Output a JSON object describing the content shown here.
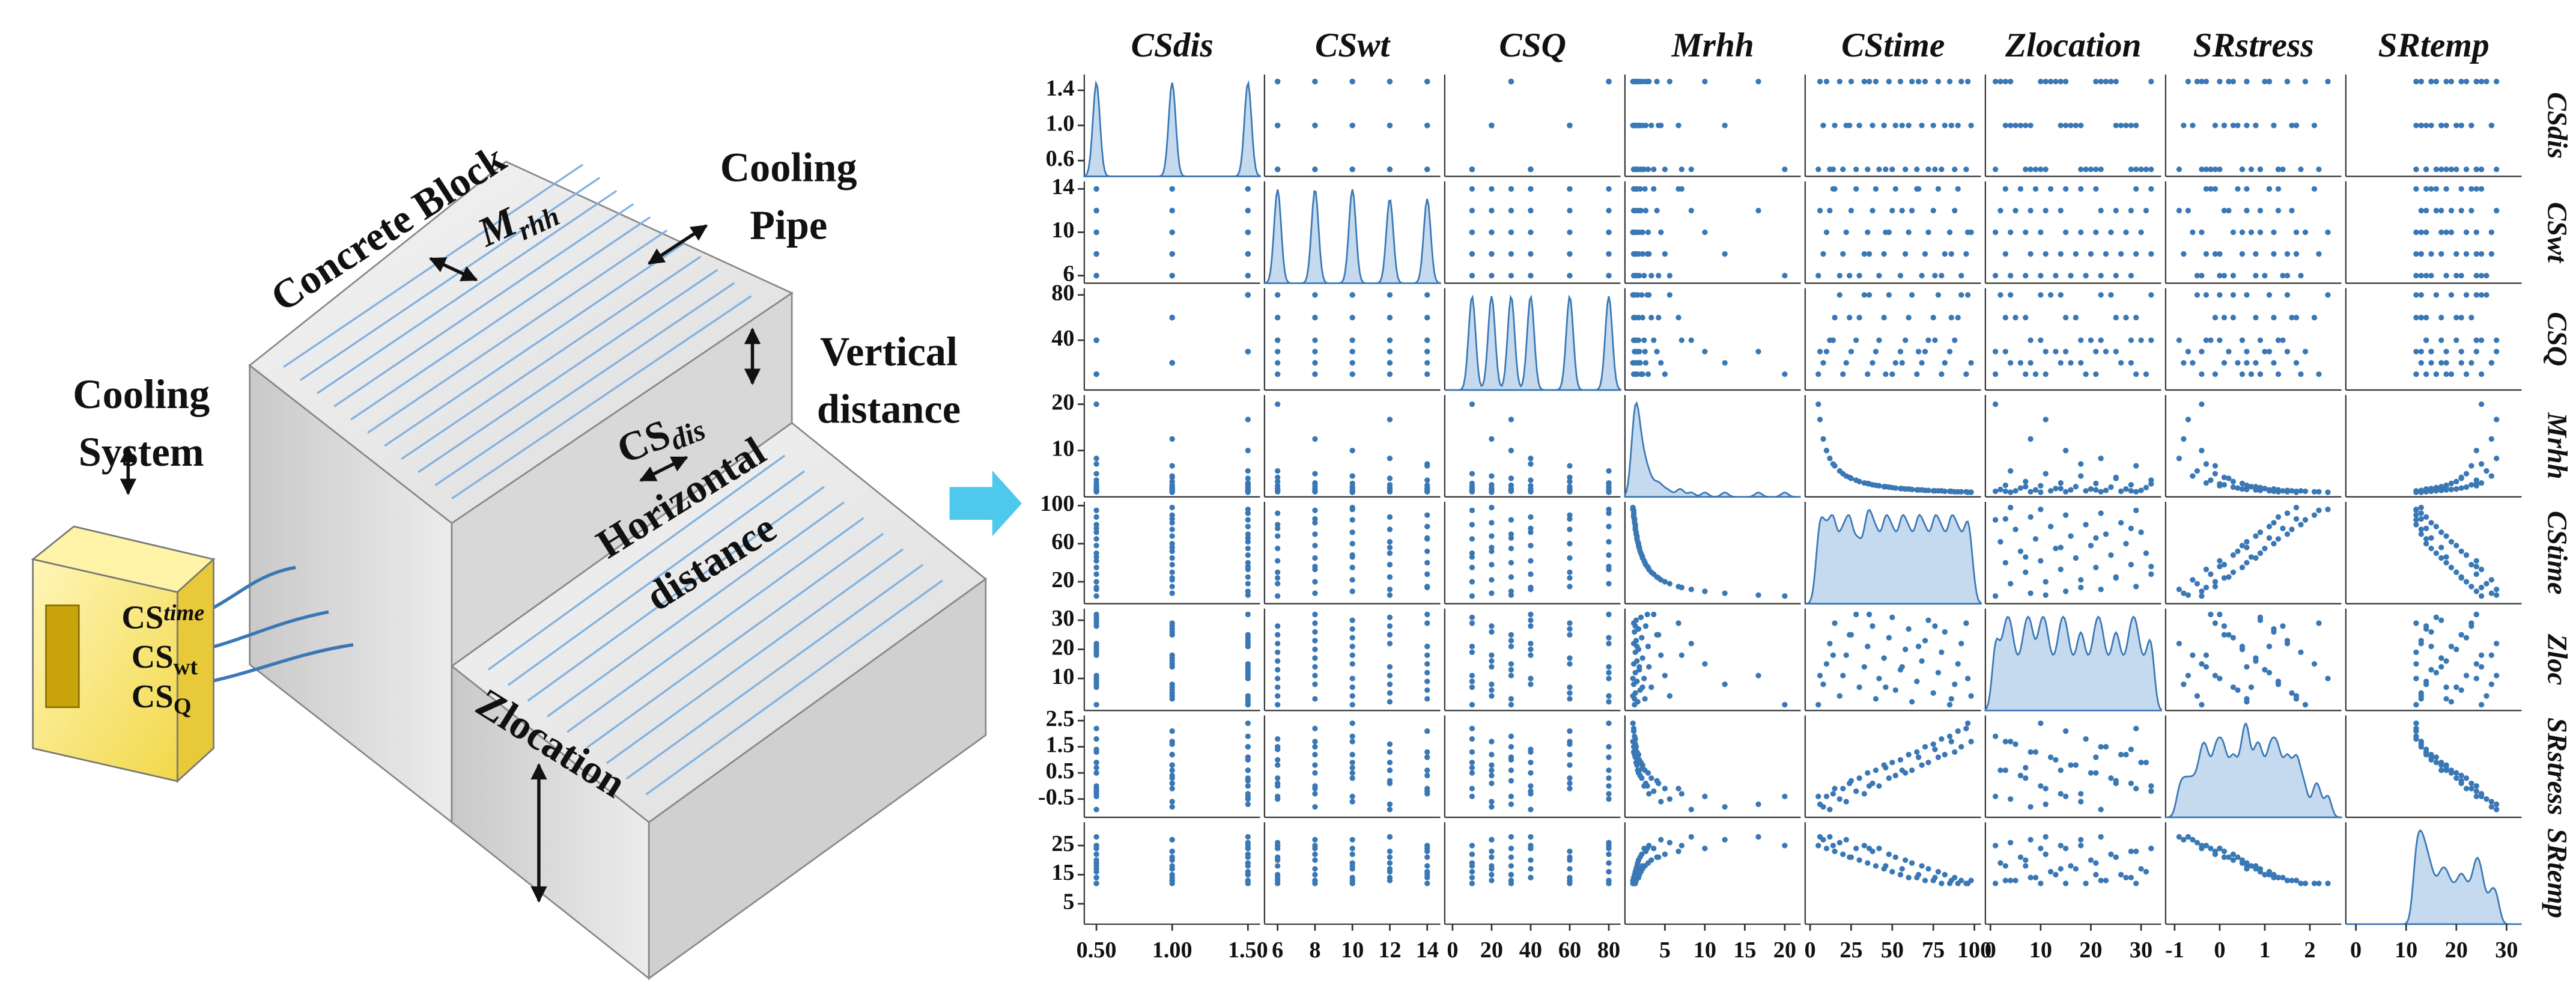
{
  "diagram": {
    "concrete_block": "Concrete Block",
    "mrhh": {
      "main": "M",
      "sub": "rhh"
    },
    "cooling_pipe": [
      "Cooling",
      "Pipe"
    ],
    "vertical_distance": [
      "Vertical",
      "distance"
    ],
    "cs_dis": {
      "main": "CS",
      "sub": "dis"
    },
    "horizontal_distance": [
      "Horizontal",
      "distance"
    ],
    "cooling_system": [
      "Cooling",
      "System"
    ],
    "cs_time": {
      "main": "CS",
      "sub": "time"
    },
    "cs_wt": {
      "main": "CS",
      "sub": "wt"
    },
    "cs_q": {
      "main": "CS",
      "sub": "Q"
    },
    "zlocation": "Zlocation"
  },
  "chart_data": {
    "type": "pairplot",
    "color": "#3a78b5",
    "variables": [
      {
        "name": "CSdis",
        "row_label": "CSdis",
        "lim": [
          0.42,
          1.58
        ],
        "xticks": [
          {
            "value": 0.5,
            "label": "0.50"
          },
          {
            "value": 1.0,
            "label": "1.00"
          },
          {
            "value": 1.5,
            "label": "1.50"
          }
        ],
        "yticks": [
          0.6,
          {
            "value": 1.0,
            "label": "1.0"
          },
          1.4
        ],
        "values": [
          0.5,
          1.0,
          1.5,
          0.5,
          1.0,
          1.5,
          0.5,
          1.0,
          1.5,
          0.5,
          1.0,
          1.5,
          0.5,
          1.0,
          1.5,
          0.5,
          1.0,
          1.5,
          0.5,
          1.0,
          1.5,
          0.5,
          1.0,
          1.5,
          0.5,
          1.0,
          1.5,
          0.5,
          1.0,
          1.5,
          0.5,
          1.0,
          1.5,
          0.5,
          1.0,
          1.5,
          0.5,
          1.0,
          1.5,
          0.5,
          1.0,
          1.5,
          0.5,
          1.0,
          1.5,
          0.5,
          1.0,
          1.5
        ]
      },
      {
        "name": "CSwt",
        "row_label": "CSwt",
        "lim": [
          5.3,
          14.7
        ],
        "xticks": [
          6,
          8,
          10,
          12,
          14
        ],
        "yticks": [
          6,
          10,
          14
        ],
        "values": [
          6,
          8,
          10,
          12,
          14,
          6,
          8,
          10,
          12,
          14,
          6,
          8,
          10,
          12,
          14,
          6,
          8,
          10,
          12,
          14,
          6,
          8,
          10,
          12,
          14,
          6,
          8,
          10,
          12,
          14,
          6,
          8,
          10,
          12,
          14,
          6,
          8,
          10,
          12,
          14,
          6,
          8,
          10,
          12,
          14,
          6,
          8,
          10
        ]
      },
      {
        "name": "CSQ",
        "row_label": "CSQ",
        "lim": [
          -4,
          86
        ],
        "xticks": [
          0,
          20,
          40,
          60,
          80
        ],
        "yticks": [
          40,
          80
        ],
        "values": [
          10,
          20,
          30,
          40,
          60,
          80,
          10,
          20,
          30,
          40,
          60,
          80,
          10,
          20,
          30,
          40,
          60,
          80,
          10,
          20,
          30,
          40,
          60,
          80,
          10,
          20,
          30,
          40,
          60,
          80,
          10,
          20,
          30,
          40,
          60,
          80,
          10,
          20,
          30,
          40,
          60,
          80,
          10,
          20,
          30,
          40,
          60,
          80
        ]
      },
      {
        "name": "Mrhh",
        "row_label": "Mrhh",
        "lim": [
          0,
          22
        ],
        "xticks": [
          5,
          10,
          15,
          20
        ],
        "yticks": [
          10,
          20
        ],
        "values": [
          20,
          12.5,
          10,
          8.3,
          6.7,
          5.6,
          5,
          4.5,
          4,
          3.6,
          3.3,
          3,
          2.9,
          2.6,
          2.5,
          2.4,
          2.2,
          2.1,
          2,
          1.9,
          1.8,
          1.7,
          1.7,
          1.6,
          1.5,
          1.5,
          1.4,
          1.4,
          1.3,
          1.3,
          1.3,
          1.2,
          1.2,
          1.1,
          1.1,
          1.1,
          1.1,
          1,
          16.7,
          7.1,
          4.2,
          2.8,
          2.2,
          1.8,
          1.5,
          1.3,
          1.2,
          1
        ]
      },
      {
        "name": "CStime",
        "row_label": "CStime",
        "lim": [
          -3,
          104
        ],
        "xticks": [
          0,
          25,
          50,
          75,
          100
        ],
        "yticks": [
          20,
          60,
          100
        ],
        "values": [
          5,
          8,
          10,
          12,
          15,
          18,
          20,
          22,
          25,
          28,
          30,
          33,
          35,
          38,
          40,
          42,
          45,
          48,
          50,
          52,
          55,
          58,
          60,
          62,
          65,
          68,
          70,
          72,
          75,
          78,
          80,
          82,
          85,
          88,
          90,
          92,
          95,
          98,
          6,
          14,
          24,
          36,
          46,
          56,
          66,
          76,
          86,
          96
        ]
      },
      {
        "name": "Zlocation",
        "row_label": "Zloc",
        "lim": [
          -1,
          34
        ],
        "xticks": [
          0,
          10,
          20,
          30
        ],
        "yticks": [
          10,
          20,
          30
        ],
        "values": [
          1,
          8,
          15,
          22,
          29,
          4,
          11,
          18,
          25,
          32,
          7,
          14,
          21,
          28,
          3,
          10,
          17,
          24,
          31,
          6,
          13,
          20,
          27,
          2,
          9,
          16,
          23,
          30,
          5,
          12,
          19,
          26,
          1,
          8,
          15,
          22,
          29,
          4,
          11,
          18,
          25,
          32,
          7,
          14,
          21,
          28,
          3,
          10
        ]
      },
      {
        "name": "SRstress",
        "row_label": "SRstress",
        "lim": [
          -1.2,
          2.7
        ],
        "xticks": [
          -1,
          0,
          1,
          2
        ],
        "yticks": [
          -0.5,
          0.5,
          1.5,
          2.5
        ],
        "values": [
          -0.4,
          -0.8,
          -0.4,
          -0.9,
          -0.1,
          -0.5,
          -0.1,
          -0.6,
          0.2,
          -0.2,
          0.3,
          -0.3,
          0.5,
          0.1,
          0.6,
          0.0,
          0.8,
          0.3,
          0.9,
          0.4,
          1.0,
          0.5,
          1.2,
          0.6,
          1.3,
          0.8,
          1.5,
          0.9,
          1.6,
          1.1,
          1.8,
          1.2,
          1.9,
          1.3,
          2.1,
          1.5,
          2.2,
          1.7,
          -0.7,
          -0.3,
          0.1,
          0.0,
          0.7,
          0.6,
          1.1,
          1.4,
          1.7,
          2.4
        ]
      },
      {
        "name": "SRtemp",
        "row_label": "SRtemp",
        "lim": [
          -2,
          33
        ],
        "xticks": [
          0,
          10,
          20,
          30
        ],
        "yticks": [
          5,
          15,
          25
        ],
        "values": [
          25,
          27,
          24,
          28,
          23,
          26,
          22,
          27,
          21,
          24,
          20,
          25,
          19,
          23,
          18,
          24,
          17,
          22,
          16,
          21,
          15,
          20,
          14,
          19,
          14,
          18,
          13,
          17,
          13,
          16,
          12,
          15,
          12,
          14,
          12,
          13,
          12,
          13,
          28,
          25,
          21,
          24,
          18,
          17,
          15,
          14,
          13,
          12
        ]
      }
    ]
  }
}
